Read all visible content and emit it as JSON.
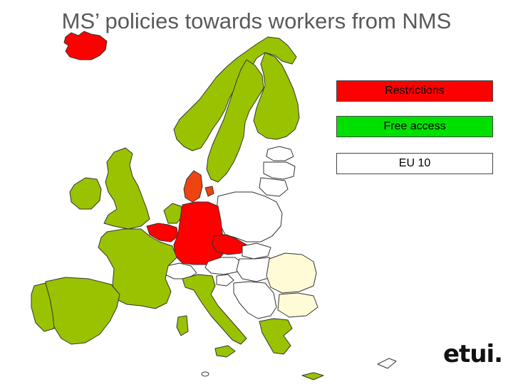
{
  "title": "MS’ policies towards workers from NMS",
  "legend": [
    {
      "label": "Restrictions",
      "color": "#ff0000"
    },
    {
      "label": "Free access",
      "color": "#00e000"
    },
    {
      "label": "EU 10",
      "color": "#ffffff"
    }
  ],
  "colors": {
    "restrictions": "#ff0000",
    "restrictions_light": "#ee4411",
    "free_access": "#99c300",
    "eu10": "#ffffff",
    "candidate": "#fffbd6",
    "border": "#333333"
  },
  "countries": {
    "restrictions": [
      "Iceland",
      "Denmark",
      "Germany",
      "Belgium",
      "Austria"
    ],
    "free_access": [
      "Norway",
      "Sweden",
      "Finland",
      "United Kingdom",
      "Ireland",
      "France",
      "Netherlands",
      "Spain",
      "Portugal",
      "Italy",
      "Greece"
    ],
    "eu10": [
      "Estonia",
      "Latvia",
      "Lithuania",
      "Poland",
      "Czech Republic",
      "Slovakia",
      "Hungary",
      "Slovenia",
      "Cyprus",
      "Malta"
    ],
    "candidates": [
      "Romania",
      "Bulgaria"
    ]
  },
  "logo": {
    "text": "etui."
  }
}
